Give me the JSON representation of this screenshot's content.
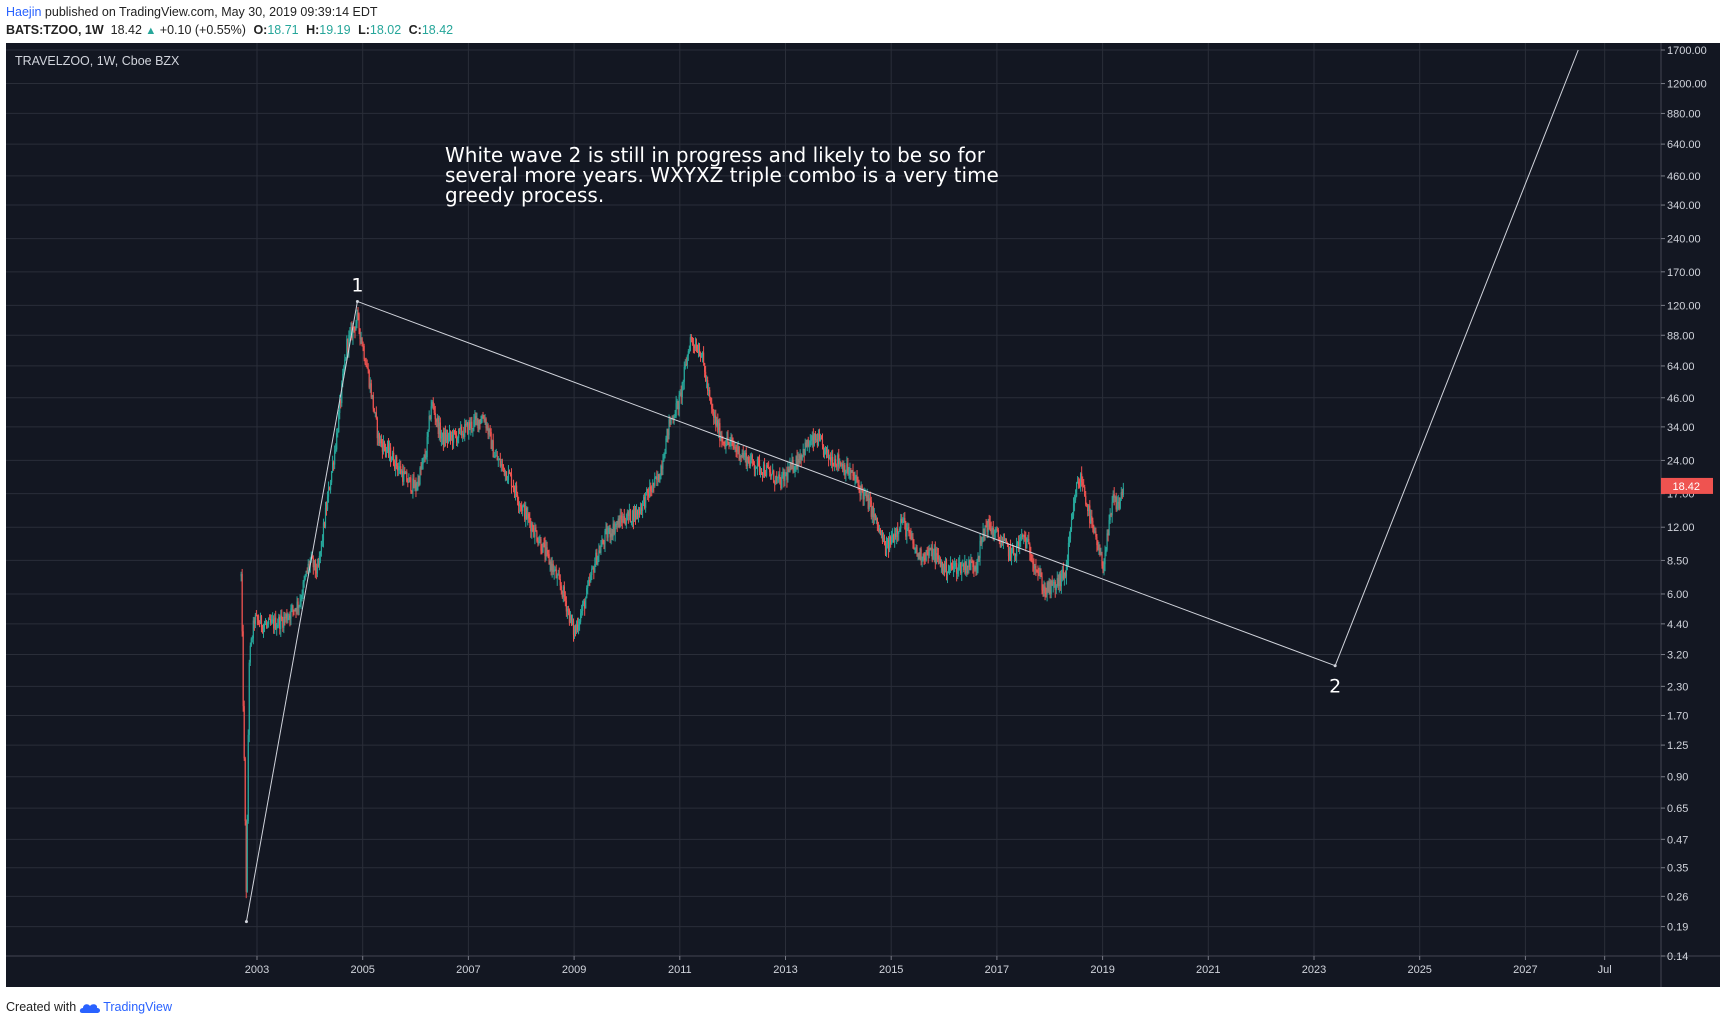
{
  "header": {
    "author": "Haejin",
    "published": "published on TradingView.com, May 30, 2019 09:39:14 EDT",
    "symbol": "BATS:TZOO, 1W",
    "last": "18.42",
    "change": "+0.10 (+0.55%)",
    "o_label": "O:",
    "o": "18.71",
    "h_label": "H:",
    "h": "19.19",
    "l_label": "L:",
    "l": "18.02",
    "c_label": "C:",
    "c": "18.42"
  },
  "chart_data": {
    "type": "line",
    "title": "TRAVELZOO, 1W, Cboe BZX",
    "y_scale": "log",
    "ylim": [
      0.14,
      1700
    ],
    "y_ticks": [
      "1700.00",
      "1200.00",
      "880.00",
      "640.00",
      "460.00",
      "340.00",
      "240.00",
      "170.00",
      "120.00",
      "88.00",
      "64.00",
      "46.00",
      "34.00",
      "24.00",
      "17.00",
      "12.00",
      "8.50",
      "6.00",
      "4.40",
      "3.20",
      "2.30",
      "1.70",
      "1.25",
      "0.90",
      "0.65",
      "0.47",
      "0.35",
      "0.26",
      "0.19",
      "0.14"
    ],
    "x_ticks": [
      "2003",
      "2005",
      "2007",
      "2009",
      "2011",
      "2013",
      "2015",
      "2017",
      "2019",
      "2021",
      "2023",
      "2025",
      "2027",
      "Jul"
    ],
    "price_label": "18.42",
    "annotation": "White wave 2 is still in progress and likely to be so for several more years. WXYXZ triple combo is a very time greedy process.",
    "wave_labels": [
      "1",
      "2"
    ],
    "wave_line": [
      {
        "x": 2002.8,
        "y": 0.2
      },
      {
        "x": 2004.9,
        "y": 125
      },
      {
        "x": 2023.4,
        "y": 2.85
      },
      {
        "x": 2028.0,
        "y": 1700
      }
    ],
    "series": [
      {
        "values": [
          {
            "x": 2002.7,
            "y": 7.2
          },
          {
            "x": 2002.8,
            "y": 0.25
          },
          {
            "x": 2002.85,
            "y": 3.0
          },
          {
            "x": 2002.95,
            "y": 4.6
          },
          {
            "x": 2003.2,
            "y": 4.3
          },
          {
            "x": 2003.5,
            "y": 4.6
          },
          {
            "x": 2003.8,
            "y": 5.5
          },
          {
            "x": 2004.0,
            "y": 8.5
          },
          {
            "x": 2004.15,
            "y": 7.5
          },
          {
            "x": 2004.3,
            "y": 14
          },
          {
            "x": 2004.5,
            "y": 30
          },
          {
            "x": 2004.7,
            "y": 80
          },
          {
            "x": 2004.9,
            "y": 105
          },
          {
            "x": 2005.1,
            "y": 60
          },
          {
            "x": 2005.3,
            "y": 30
          },
          {
            "x": 2005.6,
            "y": 24
          },
          {
            "x": 2005.8,
            "y": 20
          },
          {
            "x": 2006.0,
            "y": 18
          },
          {
            "x": 2006.2,
            "y": 26
          },
          {
            "x": 2006.3,
            "y": 44
          },
          {
            "x": 2006.5,
            "y": 30
          },
          {
            "x": 2006.8,
            "y": 31
          },
          {
            "x": 2007.0,
            "y": 34
          },
          {
            "x": 2007.3,
            "y": 38
          },
          {
            "x": 2007.5,
            "y": 25
          },
          {
            "x": 2007.8,
            "y": 20
          },
          {
            "x": 2008.0,
            "y": 15
          },
          {
            "x": 2008.3,
            "y": 11
          },
          {
            "x": 2008.6,
            "y": 7.8
          },
          {
            "x": 2008.8,
            "y": 6.0
          },
          {
            "x": 2009.0,
            "y": 4.0
          },
          {
            "x": 2009.2,
            "y": 5.5
          },
          {
            "x": 2009.4,
            "y": 8.5
          },
          {
            "x": 2009.6,
            "y": 11
          },
          {
            "x": 2009.9,
            "y": 13
          },
          {
            "x": 2010.2,
            "y": 14
          },
          {
            "x": 2010.4,
            "y": 17
          },
          {
            "x": 2010.6,
            "y": 20
          },
          {
            "x": 2010.8,
            "y": 35
          },
          {
            "x": 2011.0,
            "y": 45
          },
          {
            "x": 2011.2,
            "y": 85
          },
          {
            "x": 2011.4,
            "y": 75
          },
          {
            "x": 2011.6,
            "y": 40
          },
          {
            "x": 2011.8,
            "y": 30
          },
          {
            "x": 2012.0,
            "y": 28
          },
          {
            "x": 2012.3,
            "y": 24
          },
          {
            "x": 2012.6,
            "y": 22
          },
          {
            "x": 2012.9,
            "y": 19
          },
          {
            "x": 2013.1,
            "y": 22
          },
          {
            "x": 2013.4,
            "y": 28
          },
          {
            "x": 2013.6,
            "y": 30
          },
          {
            "x": 2013.8,
            "y": 25
          },
          {
            "x": 2014.0,
            "y": 24
          },
          {
            "x": 2014.3,
            "y": 20
          },
          {
            "x": 2014.6,
            "y": 15
          },
          {
            "x": 2014.9,
            "y": 9.5
          },
          {
            "x": 2015.2,
            "y": 13
          },
          {
            "x": 2015.5,
            "y": 9.0
          },
          {
            "x": 2015.8,
            "y": 9.2
          },
          {
            "x": 2016.0,
            "y": 7.8
          },
          {
            "x": 2016.3,
            "y": 8.0
          },
          {
            "x": 2016.6,
            "y": 8.2
          },
          {
            "x": 2016.8,
            "y": 12.5
          },
          {
            "x": 2017.0,
            "y": 11
          },
          {
            "x": 2017.3,
            "y": 9.0
          },
          {
            "x": 2017.5,
            "y": 11
          },
          {
            "x": 2017.7,
            "y": 8.5
          },
          {
            "x": 2017.9,
            "y": 6.2
          },
          {
            "x": 2018.1,
            "y": 6.5
          },
          {
            "x": 2018.3,
            "y": 7.5
          },
          {
            "x": 2018.5,
            "y": 18
          },
          {
            "x": 2018.6,
            "y": 20
          },
          {
            "x": 2018.8,
            "y": 12
          },
          {
            "x": 2019.0,
            "y": 8.0
          },
          {
            "x": 2019.1,
            "y": 11
          },
          {
            "x": 2019.2,
            "y": 16
          },
          {
            "x": 2019.3,
            "y": 15
          },
          {
            "x": 2019.4,
            "y": 18.42
          }
        ]
      }
    ]
  },
  "footer": {
    "created": "Created with",
    "brand": "TradingView"
  },
  "colors": {
    "background": "#131722",
    "grid": "#2a2e39",
    "up": "#26a69a",
    "down": "#ef5350",
    "axis_text": "#d1d4dc",
    "price_label_bg": "#ef5350",
    "wave_line": "#d1d4dc"
  }
}
